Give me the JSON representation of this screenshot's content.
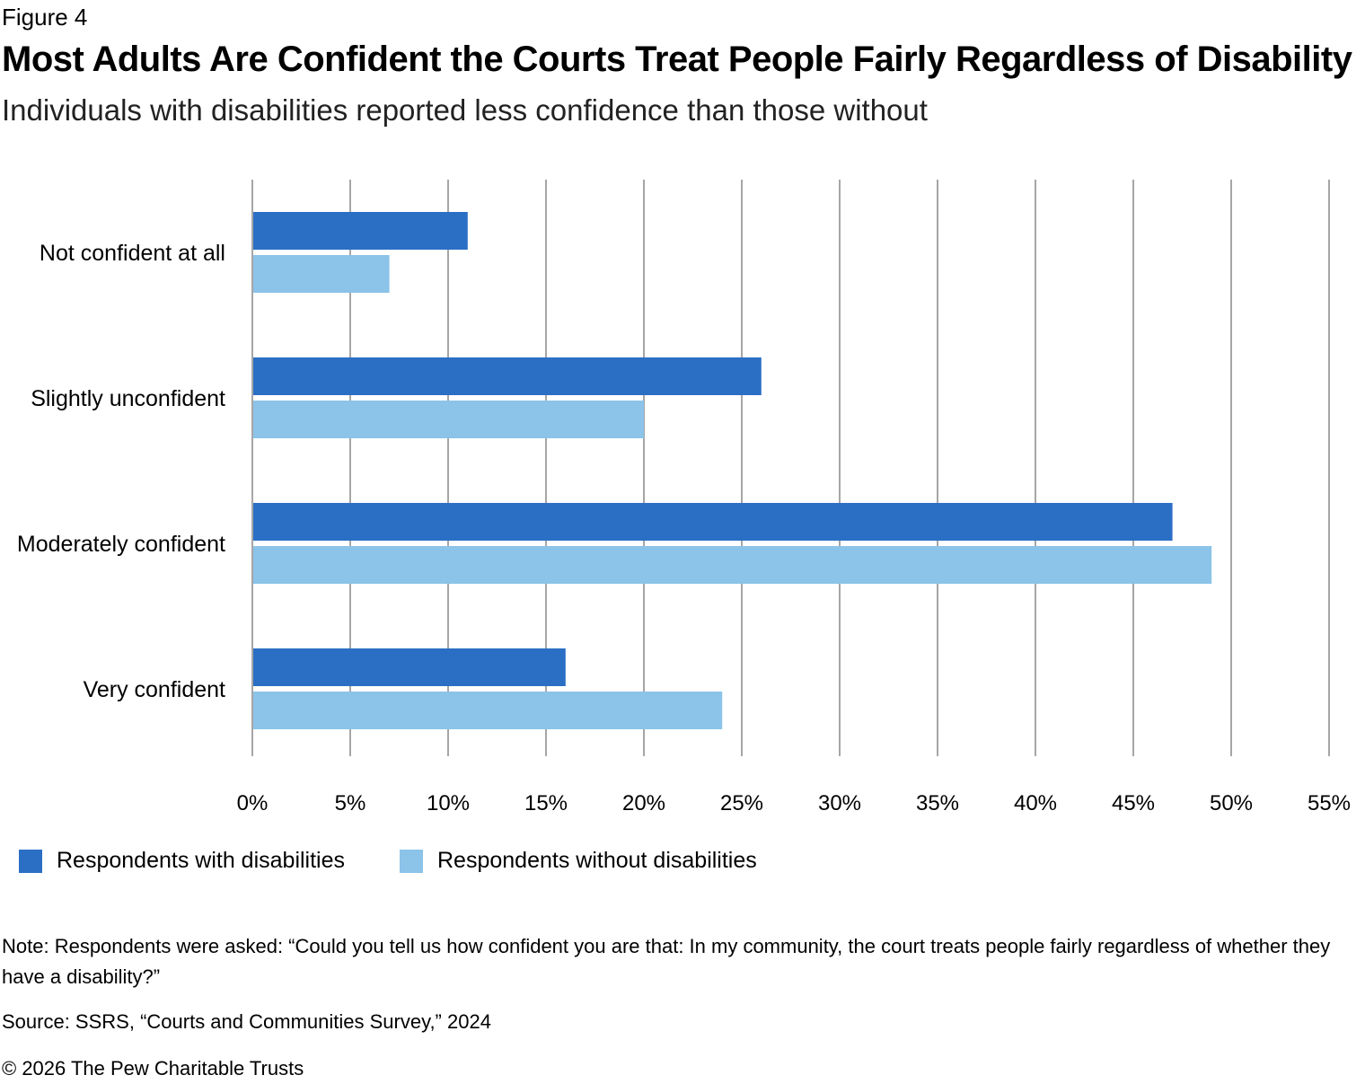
{
  "figure_label": "Figure 4",
  "title": "Most Adults Are Confident the Courts Treat People Fairly Regardless of Disability",
  "subtitle": "Individuals with disabilities reported less confidence than those without",
  "note": "Note: Respondents were asked: “Could you tell us how confident you are that: In my community, the court treats people fairly regardless of whether they have a disability?”",
  "source": "Source: SSRS, “Courts and Communities Survey,” 2024",
  "copyright": "© 2026 The Pew Charitable Trusts",
  "chart_data": {
    "type": "bar",
    "orientation": "horizontal",
    "categories": [
      "Not confident at all",
      "Slightly unconfident",
      "Moderately confident",
      "Very confident"
    ],
    "series": [
      {
        "name": "Respondents with disabilities",
        "color": "#2b6fc5",
        "values": [
          11,
          26,
          47,
          16
        ]
      },
      {
        "name": "Respondents without disabilities",
        "color": "#8bc3e9",
        "values": [
          7,
          20,
          49,
          24
        ]
      }
    ],
    "xlim": [
      0,
      55
    ],
    "xticks": [
      "0%",
      "5%",
      "10%",
      "15%",
      "20%",
      "25%",
      "30%",
      "35%",
      "40%",
      "45%",
      "50%",
      "55%"
    ],
    "grid": true,
    "legend": "bottom-left",
    "xlabel": "",
    "ylabel": ""
  }
}
